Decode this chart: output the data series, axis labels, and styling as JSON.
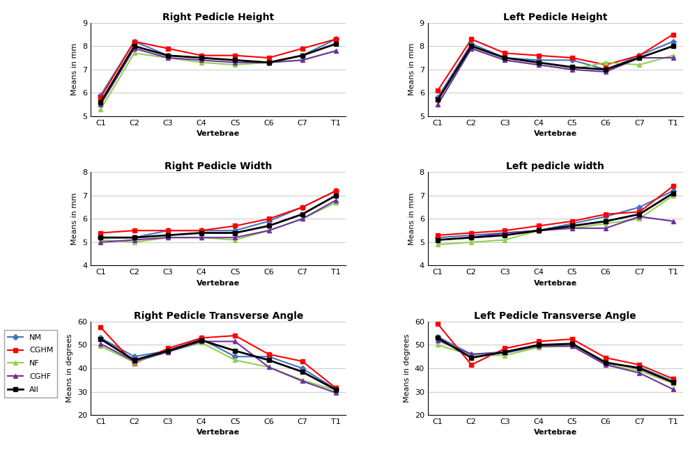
{
  "vertebrae": [
    "C1",
    "C2",
    "C3",
    "C4",
    "C5",
    "C6",
    "C7",
    "T1"
  ],
  "series_labels": [
    "NM",
    "CGHM",
    "NF",
    "CGHF",
    "All"
  ],
  "series_colors": [
    "#4472C4",
    "#FF0000",
    "#92D050",
    "#7030A0",
    "#000000"
  ],
  "series_markers": [
    "D",
    "s",
    "^",
    "^",
    "s"
  ],
  "series_linewidths": [
    1.5,
    1.5,
    1.5,
    1.5,
    2.0
  ],
  "series_markersizes": [
    4,
    5,
    5,
    5,
    5
  ],
  "right_pedicle_height": {
    "title": "Right Pedicle Height",
    "ylabel": "Means in mm",
    "xlabel": "Vertebrae",
    "ylim": [
      5,
      9
    ],
    "yticks": [
      5,
      6,
      7,
      8,
      9
    ],
    "NM": [
      5.9,
      8.2,
      7.6,
      7.5,
      7.4,
      7.3,
      7.6,
      8.3
    ],
    "CGHM": [
      5.8,
      8.2,
      7.9,
      7.6,
      7.6,
      7.5,
      7.9,
      8.3
    ],
    "NF": [
      5.3,
      7.7,
      7.5,
      7.3,
      7.2,
      7.3,
      7.4,
      7.8
    ],
    "CGHF": [
      5.5,
      7.9,
      7.5,
      7.4,
      7.3,
      7.3,
      7.4,
      7.8
    ],
    "All": [
      5.6,
      8.0,
      7.6,
      7.5,
      7.4,
      7.3,
      7.6,
      8.1
    ]
  },
  "left_pedicle_height": {
    "title": "Left Pedicle Height",
    "ylabel": "Means in mm",
    "xlabel": "Vertebrae",
    "ylim": [
      5,
      9
    ],
    "yticks": [
      5,
      6,
      7,
      8,
      9
    ],
    "NM": [
      5.8,
      8.1,
      7.5,
      7.4,
      7.4,
      7.0,
      7.6,
      8.2
    ],
    "CGHM": [
      6.1,
      8.3,
      7.7,
      7.6,
      7.5,
      7.2,
      7.6,
      8.5
    ],
    "NF": [
      5.5,
      7.9,
      7.4,
      7.2,
      7.0,
      7.3,
      7.2,
      7.6
    ],
    "CGHF": [
      5.5,
      7.9,
      7.4,
      7.2,
      7.0,
      6.9,
      7.5,
      7.5
    ],
    "All": [
      5.7,
      8.0,
      7.5,
      7.3,
      7.1,
      7.0,
      7.5,
      8.0
    ]
  },
  "right_pedicle_width": {
    "title": "Right Pedicle Width",
    "ylabel": "Means in mm",
    "xlabel": "Vertebrae",
    "ylim": [
      4,
      8
    ],
    "yticks": [
      4,
      5,
      6,
      7,
      8
    ],
    "NM": [
      5.2,
      5.2,
      5.5,
      5.5,
      5.5,
      5.9,
      6.5,
      7.2
    ],
    "CGHM": [
      5.4,
      5.5,
      5.5,
      5.5,
      5.7,
      6.0,
      6.5,
      7.2
    ],
    "NF": [
      5.1,
      5.0,
      5.2,
      5.2,
      5.1,
      5.5,
      6.0,
      6.7
    ],
    "CGHF": [
      5.0,
      5.1,
      5.2,
      5.2,
      5.2,
      5.5,
      6.0,
      6.8
    ],
    "All": [
      5.2,
      5.2,
      5.3,
      5.4,
      5.4,
      5.7,
      6.2,
      7.0
    ]
  },
  "left_pedicle_width": {
    "title": "Left pedicle width",
    "ylabel": "Means in mm",
    "xlabel": "Vertebrae",
    "ylim": [
      4,
      8
    ],
    "yticks": [
      4,
      5,
      6,
      7,
      8
    ],
    "NM": [
      5.2,
      5.3,
      5.4,
      5.5,
      5.8,
      6.1,
      6.5,
      7.2
    ],
    "CGHM": [
      5.3,
      5.4,
      5.5,
      5.7,
      5.9,
      6.2,
      6.3,
      7.4
    ],
    "NF": [
      4.9,
      5.0,
      5.1,
      5.5,
      5.6,
      5.8,
      6.0,
      7.0
    ],
    "CGHF": [
      5.1,
      5.2,
      5.4,
      5.5,
      5.6,
      5.6,
      6.1,
      5.9
    ],
    "All": [
      5.1,
      5.2,
      5.3,
      5.5,
      5.7,
      5.9,
      6.2,
      7.1
    ]
  },
  "right_pedicle_angle": {
    "title": "Right Pedicle Transverse Angle",
    "ylabel": "Means in degrees",
    "xlabel": "Vertebrae",
    "ylim": [
      20,
      60
    ],
    "yticks": [
      20,
      30,
      40,
      50,
      60
    ],
    "NM": [
      53.0,
      45.0,
      47.5,
      52.5,
      45.0,
      45.0,
      40.0,
      31.0
    ],
    "CGHM": [
      57.5,
      42.0,
      48.5,
      53.0,
      54.0,
      46.0,
      43.0,
      31.5
    ],
    "NF": [
      49.5,
      42.5,
      47.0,
      51.0,
      43.5,
      40.5,
      35.0,
      30.5
    ],
    "CGHF": [
      50.5,
      43.0,
      47.0,
      51.5,
      51.5,
      40.5,
      34.5,
      29.5
    ],
    "All": [
      52.5,
      43.5,
      47.5,
      52.0,
      47.5,
      43.5,
      38.5,
      30.8
    ]
  },
  "left_pedicle_angle": {
    "title": "Left Pedicle Transverse Angle",
    "ylabel": "Means in degrees",
    "xlabel": "Vertebrae",
    "ylim": [
      20,
      60
    ],
    "yticks": [
      20,
      30,
      40,
      50,
      60
    ],
    "NM": [
      53.5,
      46.0,
      46.5,
      49.5,
      50.5,
      42.0,
      40.5,
      34.5
    ],
    "CGHM": [
      59.0,
      41.5,
      48.5,
      51.5,
      52.5,
      44.5,
      41.5,
      35.5
    ],
    "NF": [
      50.0,
      45.5,
      45.5,
      49.0,
      49.5,
      41.5,
      39.0,
      33.5
    ],
    "CGHF": [
      52.0,
      46.0,
      47.0,
      49.5,
      49.5,
      41.5,
      38.0,
      31.0
    ],
    "All": [
      53.0,
      44.5,
      47.0,
      50.0,
      50.5,
      42.5,
      40.0,
      34.0
    ]
  },
  "legend_loc": "center left",
  "title_fontsize": 10,
  "label_fontsize": 8,
  "tick_fontsize": 8,
  "marker_size": 4,
  "bg_color": "#FFFFFF",
  "grid_color": "#CCCCCC"
}
